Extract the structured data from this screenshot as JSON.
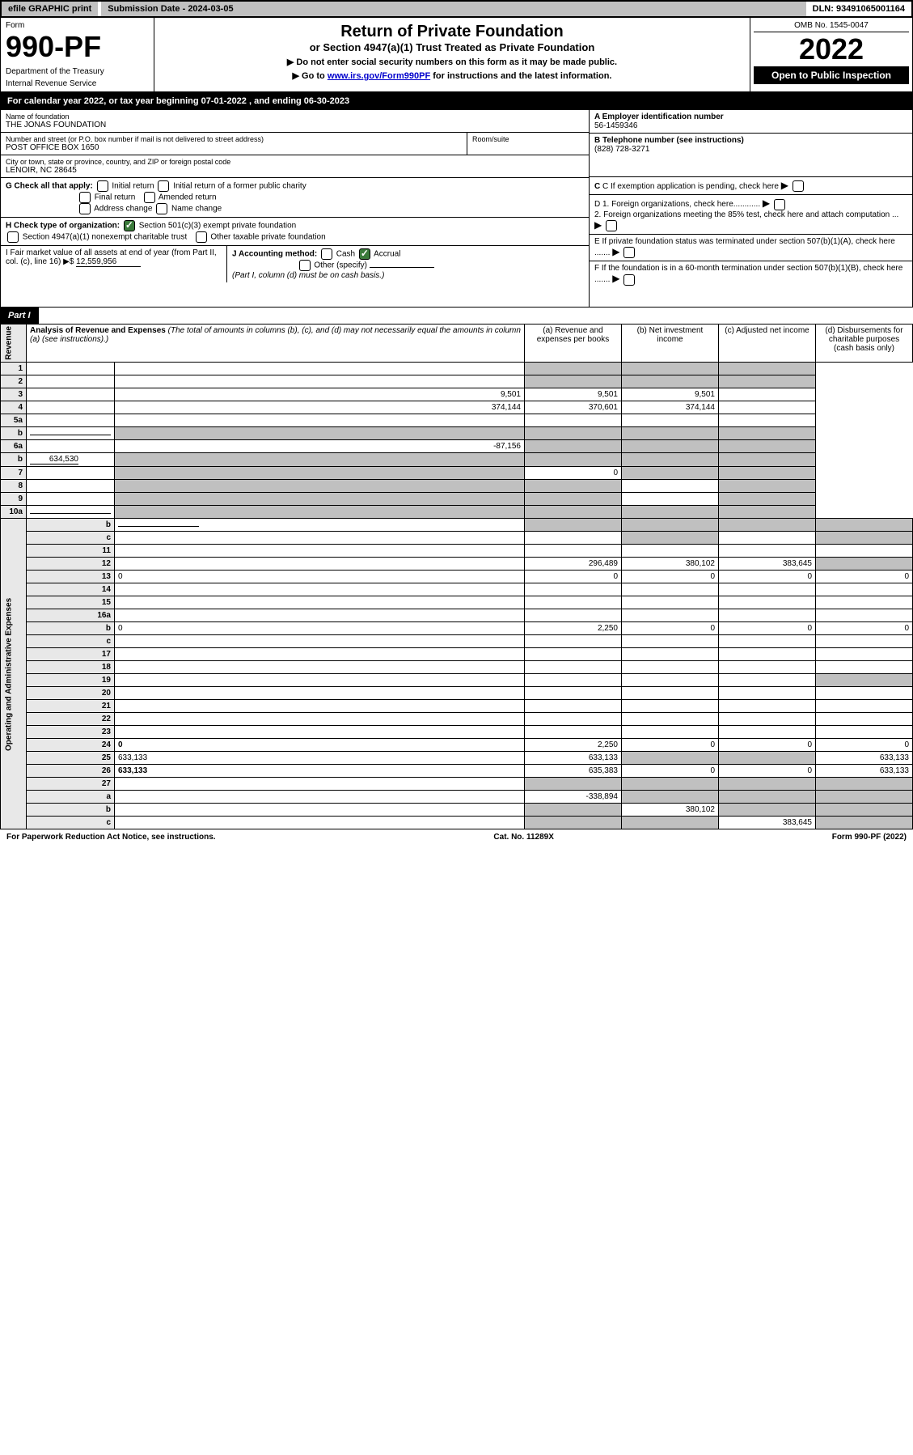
{
  "top": {
    "efile": "efile GRAPHIC print",
    "submission": "Submission Date - 2024-03-05",
    "dln": "DLN: 93491065001164"
  },
  "header": {
    "form_label": "Form",
    "form_num": "990-PF",
    "dept1": "Department of the Treasury",
    "dept2": "Internal Revenue Service",
    "title": "Return of Private Foundation",
    "subtitle": "or Section 4947(a)(1) Trust Treated as Private Foundation",
    "note1": "▶ Do not enter social security numbers on this form as it may be made public.",
    "note2_pre": "▶ Go to ",
    "note2_link": "www.irs.gov/Form990PF",
    "note2_post": " for instructions and the latest information.",
    "omb": "OMB No. 1545-0047",
    "year": "2022",
    "open": "Open to Public Inspection"
  },
  "cal": "For calendar year 2022, or tax year beginning 07-01-2022                          , and ending 06-30-2023",
  "ident": {
    "name_label": "Name of foundation",
    "name": "THE JONAS FOUNDATION",
    "addr_label": "Number and street (or P.O. box number if mail is not delivered to street address)",
    "addr": "POST OFFICE BOX 1650",
    "room": "Room/suite",
    "city_label": "City or town, state or province, country, and ZIP or foreign postal code",
    "city": "LENOIR, NC  28645",
    "A_label": "A Employer identification number",
    "A": "56-1459346",
    "B_label": "B Telephone number (see instructions)",
    "B": "(828) 728-3271",
    "C": "C If exemption application is pending, check here",
    "D1": "D 1. Foreign organizations, check here............",
    "D2": "2. Foreign organizations meeting the 85% test, check here and attach computation ...",
    "E": "E If private foundation status was terminated under section 507(b)(1)(A), check here .......",
    "F": "F If the foundation is in a 60-month termination under section 507(b)(1)(B), check here .......",
    "G": "G Check all that apply:",
    "G_opts": [
      "Initial return",
      "Initial return of a former public charity",
      "Final return",
      "Amended return",
      "Address change",
      "Name change"
    ],
    "H": "H Check type of organization:",
    "H1": "Section 501(c)(3) exempt private foundation",
    "H2": "Section 4947(a)(1) nonexempt charitable trust",
    "H3": "Other taxable private foundation",
    "I": "I Fair market value of all assets at end of year (from Part II, col. (c), line 16) ▶$",
    "I_val": "12,559,956",
    "J": "J Accounting method:",
    "J_cash": "Cash",
    "J_accrual": "Accrual",
    "J_other": "Other (specify)",
    "J_note": "(Part I, column (d) must be on cash basis.)"
  },
  "part1": {
    "tag": "Part I",
    "title": "Analysis of Revenue and Expenses",
    "title_note": "(The total of amounts in columns (b), (c), and (d) may not necessarily equal the amounts in column (a) (see instructions).)",
    "col_a": "(a) Revenue and expenses per books",
    "col_b": "(b) Net investment income",
    "col_c": "(c) Adjusted net income",
    "col_d": "(d) Disbursements for charitable purposes (cash basis only)",
    "revenue_label": "Revenue",
    "expenses_label": "Operating and Administrative Expenses"
  },
  "rows": [
    {
      "n": "1",
      "d": "",
      "a": "",
      "b": "",
      "c": "",
      "sb": true,
      "sc": true,
      "sd": true
    },
    {
      "n": "2",
      "d": "",
      "dots": true,
      "a": "",
      "b": "",
      "c": "",
      "sb": true,
      "sc": true,
      "sd": true,
      "bold_not": true
    },
    {
      "n": "3",
      "d": "",
      "a": "9,501",
      "b": "9,501",
      "c": "9,501"
    },
    {
      "n": "4",
      "d": "",
      "dots": true,
      "a": "374,144",
      "b": "370,601",
      "c": "374,144"
    },
    {
      "n": "5a",
      "d": "",
      "dots": true,
      "a": "",
      "b": "",
      "c": ""
    },
    {
      "n": "b",
      "d": "",
      "a": "",
      "b": "",
      "c": "",
      "sb": true,
      "sc": true,
      "sd": true,
      "sa": true,
      "line_in": true
    },
    {
      "n": "6a",
      "d": "",
      "a": "-87,156",
      "b": "",
      "c": "",
      "sb": true,
      "sc": true,
      "sd": true
    },
    {
      "n": "b",
      "d": "",
      "val": "634,530",
      "a": "",
      "b": "",
      "c": "",
      "sb": true,
      "sc": true,
      "sd": true,
      "sa": true,
      "line_in": true
    },
    {
      "n": "7",
      "d": "",
      "dots": true,
      "a": "",
      "b": "0",
      "c": "",
      "sa": true,
      "sc": true,
      "sd": true
    },
    {
      "n": "8",
      "d": "",
      "dots": true,
      "a": "",
      "b": "",
      "c": "",
      "sa": true,
      "sb": true,
      "sd": true
    },
    {
      "n": "9",
      "d": "",
      "dots": true,
      "a": "",
      "b": "",
      "c": "",
      "sa": true,
      "sb": true,
      "sd": true
    },
    {
      "n": "10a",
      "d": "",
      "a": "",
      "b": "",
      "c": "",
      "sb": true,
      "sc": true,
      "sd": true,
      "sa": true,
      "line_in": true
    },
    {
      "n": "b",
      "d": "",
      "dots": true,
      "a": "",
      "b": "",
      "c": "",
      "sb": true,
      "sc": true,
      "sd": true,
      "sa": true,
      "line_in": true
    },
    {
      "n": "c",
      "d": "",
      "dots": true,
      "a": "",
      "b": "",
      "c": "",
      "sb": true,
      "sd": true
    },
    {
      "n": "11",
      "d": "",
      "dots": true,
      "a": "",
      "b": "",
      "c": ""
    },
    {
      "n": "12",
      "d": "",
      "dots": true,
      "bold": true,
      "a": "296,489",
      "b": "380,102",
      "c": "383,645",
      "sd": true
    },
    {
      "n": "13",
      "d": "0",
      "a": "0",
      "b": "0",
      "c": "0"
    },
    {
      "n": "14",
      "d": "",
      "dots": true,
      "a": "",
      "b": "",
      "c": ""
    },
    {
      "n": "15",
      "d": "",
      "dots": true,
      "a": "",
      "b": "",
      "c": ""
    },
    {
      "n": "16a",
      "d": "",
      "dots": true,
      "a": "",
      "b": "",
      "c": ""
    },
    {
      "n": "b",
      "d": "0",
      "dots": true,
      "a": "2,250",
      "b": "0",
      "c": "0"
    },
    {
      "n": "c",
      "d": "",
      "dots": true,
      "a": "",
      "b": "",
      "c": ""
    },
    {
      "n": "17",
      "d": "",
      "dots": true,
      "a": "",
      "b": "",
      "c": ""
    },
    {
      "n": "18",
      "d": "",
      "dots": true,
      "a": "",
      "b": "",
      "c": ""
    },
    {
      "n": "19",
      "d": "",
      "dots": true,
      "a": "",
      "b": "",
      "c": "",
      "sd": true
    },
    {
      "n": "20",
      "d": "",
      "dots": true,
      "a": "",
      "b": "",
      "c": ""
    },
    {
      "n": "21",
      "d": "",
      "dots": true,
      "a": "",
      "b": "",
      "c": ""
    },
    {
      "n": "22",
      "d": "",
      "dots": true,
      "a": "",
      "b": "",
      "c": ""
    },
    {
      "n": "23",
      "d": "",
      "dots": true,
      "a": "",
      "b": "",
      "c": ""
    },
    {
      "n": "24",
      "d": "0",
      "dots": true,
      "bold": true,
      "a": "2,250",
      "b": "0",
      "c": "0"
    },
    {
      "n": "25",
      "d": "633,133",
      "dots": true,
      "a": "633,133",
      "b": "",
      "c": "",
      "sb": true,
      "sc": true
    },
    {
      "n": "26",
      "d": "633,133",
      "bold": true,
      "a": "635,383",
      "b": "0",
      "c": "0"
    },
    {
      "n": "27",
      "d": "",
      "a": "",
      "b": "",
      "c": "",
      "sa": true,
      "sb": true,
      "sc": true,
      "sd": true
    },
    {
      "n": "a",
      "d": "",
      "bold": true,
      "a": "-338,894",
      "b": "",
      "c": "",
      "sb": true,
      "sc": true,
      "sd": true
    },
    {
      "n": "b",
      "d": "",
      "bold": true,
      "a": "",
      "b": "380,102",
      "c": "",
      "sa": true,
      "sc": true,
      "sd": true
    },
    {
      "n": "c",
      "d": "",
      "dots": true,
      "bold": true,
      "a": "",
      "b": "",
      "c": "383,645",
      "sa": true,
      "sb": true,
      "sd": true
    }
  ],
  "footer": {
    "left": "For Paperwork Reduction Act Notice, see instructions.",
    "mid": "Cat. No. 11289X",
    "right": "Form 990-PF (2022)"
  }
}
